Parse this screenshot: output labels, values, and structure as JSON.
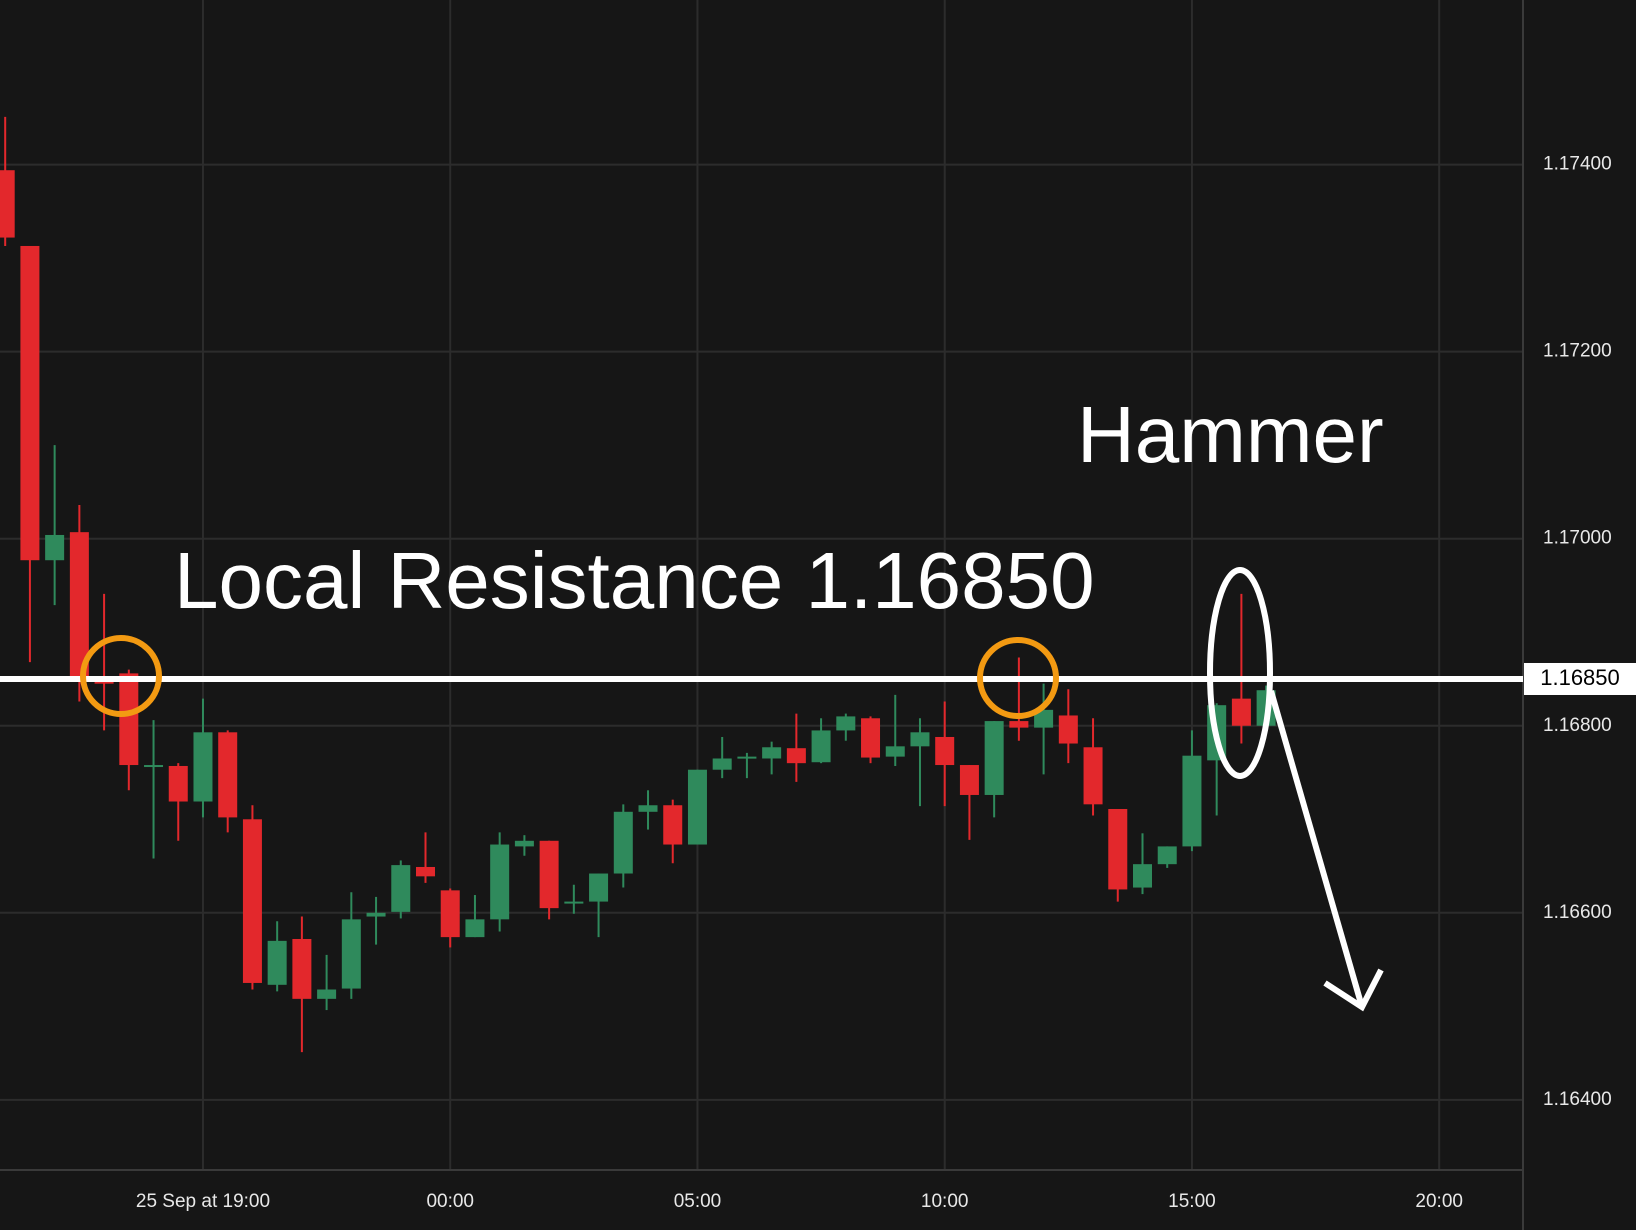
{
  "chart_data": {
    "type": "candlestick",
    "open": [
      1.17394,
      1.17313,
      1.16977,
      1.17007,
      1.16851,
      1.16856,
      1.16757,
      1.16757,
      1.16719,
      1.16793,
      1.167,
      1.16523,
      1.16572,
      1.16508,
      1.16519,
      1.16596,
      1.16601,
      1.16649,
      1.16624,
      1.16574,
      1.16593,
      1.16671,
      1.16677,
      1.1661,
      1.16612,
      1.16642,
      1.16708,
      1.16715,
      1.16673,
      1.16753,
      1.16765,
      1.16765,
      1.16776,
      1.16761,
      1.16795,
      1.16808,
      1.16767,
      1.16778,
      1.16788,
      1.16758,
      1.16726,
      1.16805,
      1.16798,
      1.16811,
      1.16777,
      1.16711,
      1.16627,
      1.16652,
      1.16671,
      1.16763,
      1.16829,
      1.168
    ],
    "high": [
      1.17451,
      1.17313,
      1.171,
      1.17036,
      1.16941,
      1.1686,
      1.16806,
      1.1676,
      1.16829,
      1.16795,
      1.16715,
      1.16591,
      1.16596,
      1.16555,
      1.16622,
      1.16617,
      1.16656,
      1.16686,
      1.16626,
      1.16619,
      1.16686,
      1.16683,
      1.16677,
      1.1663,
      1.16642,
      1.16716,
      1.16731,
      1.16721,
      1.16753,
      1.16788,
      1.16771,
      1.16783,
      1.16813,
      1.16808,
      1.16813,
      1.1681,
      1.16833,
      1.16808,
      1.16826,
      1.16758,
      1.16805,
      1.16873,
      1.16845,
      1.16839,
      1.16808,
      1.16711,
      1.16685,
      1.16671,
      1.16795,
      1.16824,
      1.16941,
      1.16843
    ],
    "low": [
      1.17313,
      1.16868,
      1.16929,
      1.16826,
      1.16795,
      1.16731,
      1.16658,
      1.16677,
      1.16702,
      1.16686,
      1.16518,
      1.16516,
      1.16451,
      1.16496,
      1.16508,
      1.16566,
      1.16594,
      1.16632,
      1.16563,
      1.16574,
      1.1658,
      1.16661,
      1.16593,
      1.16599,
      1.16574,
      1.16627,
      1.16689,
      1.16653,
      1.16673,
      1.16744,
      1.16744,
      1.16748,
      1.1674,
      1.1676,
      1.16784,
      1.1676,
      1.16757,
      1.16714,
      1.16714,
      1.16678,
      1.16702,
      1.16784,
      1.16748,
      1.1676,
      1.16704,
      1.16612,
      1.1662,
      1.16648,
      1.16666,
      1.16704,
      1.16781,
      1.16795
    ],
    "close": [
      1.17322,
      1.16977,
      1.17004,
      1.16851,
      1.16845,
      1.16758,
      1.16758,
      1.16719,
      1.16793,
      1.16702,
      1.16525,
      1.1657,
      1.16508,
      1.16518,
      1.16593,
      1.166,
      1.16651,
      1.16639,
      1.16574,
      1.16593,
      1.16673,
      1.16677,
      1.16605,
      1.16612,
      1.16642,
      1.16708,
      1.16715,
      1.16673,
      1.16753,
      1.16765,
      1.16767,
      1.16777,
      1.1676,
      1.16795,
      1.1681,
      1.16766,
      1.16778,
      1.16793,
      1.16758,
      1.16726,
      1.16805,
      1.16798,
      1.16817,
      1.16781,
      1.16716,
      1.16625,
      1.16652,
      1.16671,
      1.16768,
      1.16822,
      1.168,
      1.16838
    ],
    "up_color": "#2f8a5c",
    "down_color": "#e3282c",
    "xlim": [
      -0.21,
      61.39
    ],
    "xticks": [
      {
        "value": 8,
        "label": "25 Sep at 19:00"
      },
      {
        "value": 18,
        "label": "00:00"
      },
      {
        "value": 28,
        "label": "05:00"
      },
      {
        "value": 38,
        "label": "10:00"
      },
      {
        "value": 48,
        "label": "15:00"
      },
      {
        "value": 58,
        "label": "20:00"
      }
    ],
    "ylim": [
      1.16325,
      1.17576
    ],
    "yticks": [
      {
        "value": 1.164,
        "label": "1.16400"
      },
      {
        "value": 1.166,
        "label": "1.16600"
      },
      {
        "value": 1.168,
        "label": "1.16800"
      },
      {
        "value": 1.17,
        "label": "1.17000"
      },
      {
        "value": 1.172,
        "label": "1.17200"
      },
      {
        "value": 1.174,
        "label": "1.17400"
      }
    ],
    "grid": true,
    "resistance": {
      "value": 1.1685,
      "label": "1.16850"
    },
    "annotations": [
      "Local Resistance 1.16850",
      "Hammer"
    ]
  }
}
